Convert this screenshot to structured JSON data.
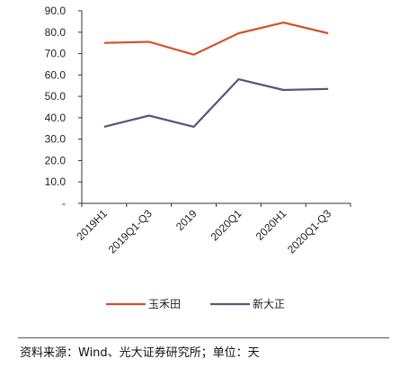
{
  "chart_data": {
    "type": "line",
    "categories": [
      "2019H1",
      "2019Q1-Q3",
      "2019",
      "2020Q1",
      "2020H1",
      "2020Q1-Q3"
    ],
    "y_ticks": [
      "-",
      "10.0",
      "20.0",
      "30.0",
      "40.0",
      "50.0",
      "60.0",
      "70.0",
      "80.0",
      "90.0"
    ],
    "ylim": [
      0,
      90
    ],
    "grid": false,
    "legend_position": "bottom",
    "series": [
      {
        "name": "玉禾田",
        "color": "#d2522b",
        "values": [
          75.0,
          75.5,
          69.5,
          79.5,
          84.5,
          79.5
        ]
      },
      {
        "name": "新大正",
        "color": "#58557a",
        "values": [
          35.8,
          41.0,
          35.8,
          58.0,
          53.0,
          53.5
        ]
      }
    ]
  },
  "footer": {
    "source": "资料来源：Wind、光大证券研究所；单位：天"
  }
}
